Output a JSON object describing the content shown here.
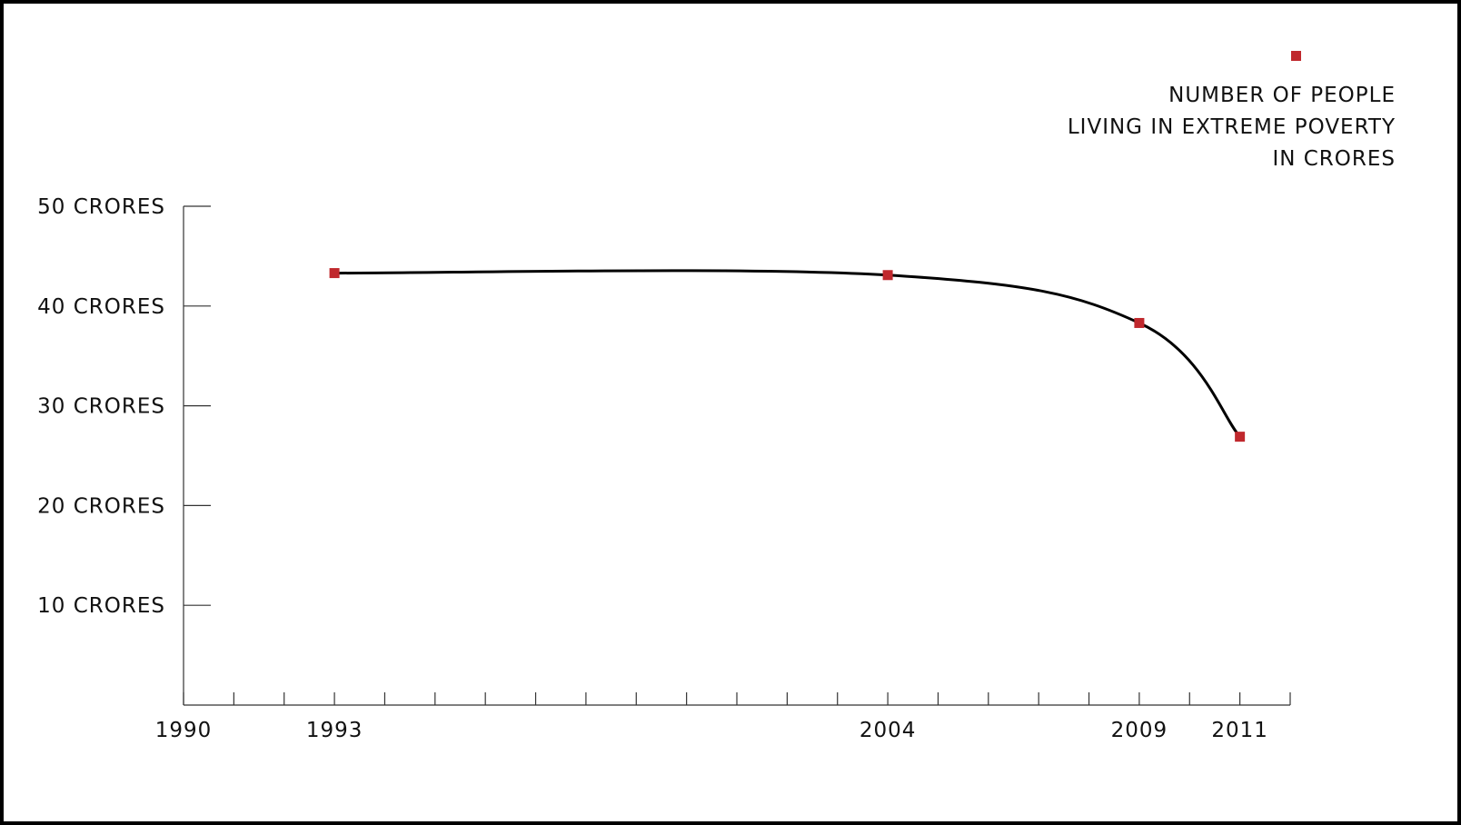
{
  "chart_data": {
    "type": "line",
    "title": "",
    "xlabel": "",
    "ylabel": "",
    "x": [
      1993,
      2004,
      2009,
      2011
    ],
    "series": [
      {
        "name": "NUMBER OF PEOPLE LIVING IN EXTREME POVERTY IN CRORES",
        "values": [
          43.3,
          43.1,
          38.3,
          26.9
        ]
      }
    ],
    "xlim": [
      1990,
      2012
    ],
    "ylim": [
      0,
      50
    ],
    "x_tick_labels": [
      "1990",
      "1993",
      "2004",
      "2009",
      "2011"
    ],
    "y_tick_labels": [
      "10 CRORES",
      "20 CRORES",
      "30 CRORES",
      "40 CRORES",
      "50 CRORES"
    ],
    "legend": {
      "position": "top-right",
      "lines": [
        "NUMBER OF PEOPLE",
        "LIVING IN EXTREME POVERTY",
        "IN CRORES"
      ]
    },
    "grid": false,
    "colors": {
      "marker": "#c0282d",
      "line": "#000000",
      "axis": "#333333"
    }
  }
}
